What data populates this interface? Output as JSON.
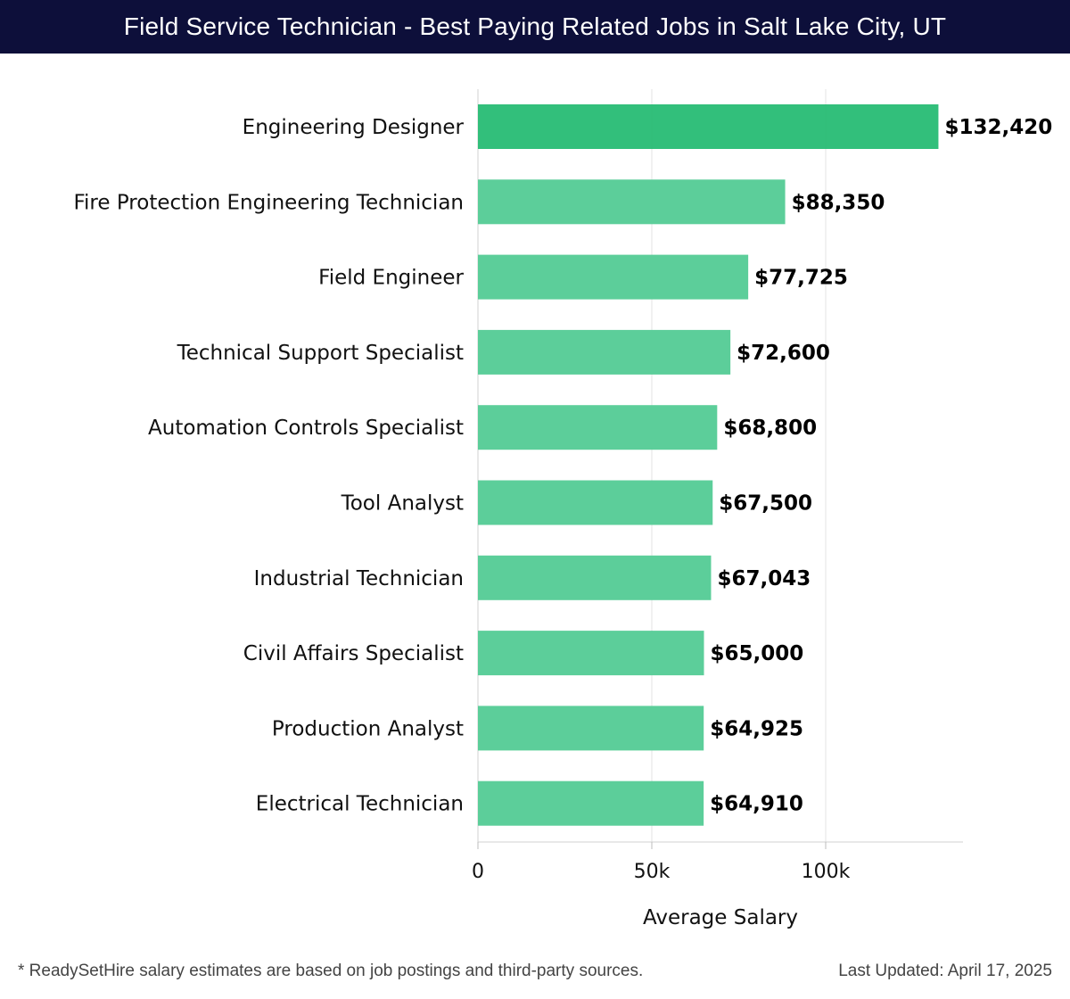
{
  "header": {
    "title": "Field Service Technician - Best Paying Related Jobs in Salt Lake City, UT"
  },
  "chart_data": {
    "type": "bar",
    "orientation": "horizontal",
    "categories": [
      "Engineering Designer",
      "Fire Protection Engineering Technician",
      "Field Engineer",
      "Technical Support Specialist",
      "Automation Controls Specialist",
      "Tool Analyst",
      "Industrial Technician",
      "Civil Affairs Specialist",
      "Production Analyst",
      "Electrical Technician"
    ],
    "values": [
      132420,
      88350,
      77725,
      72600,
      68800,
      67500,
      67043,
      65000,
      64925,
      64910
    ],
    "value_labels": [
      "$132,420",
      "$88,350",
      "$77,725",
      "$72,600",
      "$68,800",
      "$67,500",
      "$67,043",
      "$65,000",
      "$64,925",
      "$64,910"
    ],
    "xlabel": "Average Salary",
    "ylabel": "",
    "xlim": [
      0,
      139000
    ],
    "xticks": [
      0,
      50000,
      100000
    ],
    "xtick_labels": [
      "0",
      "50k",
      "100k"
    ],
    "grid": "vertical",
    "colors": {
      "highlight": "#2bbd77",
      "bar": "#57cc97",
      "grid": "#e3e3e3"
    }
  },
  "footer": {
    "note": "* ReadySetHire salary estimates are based on job postings and third-party sources.",
    "updated": "Last Updated: April 17, 2025"
  }
}
